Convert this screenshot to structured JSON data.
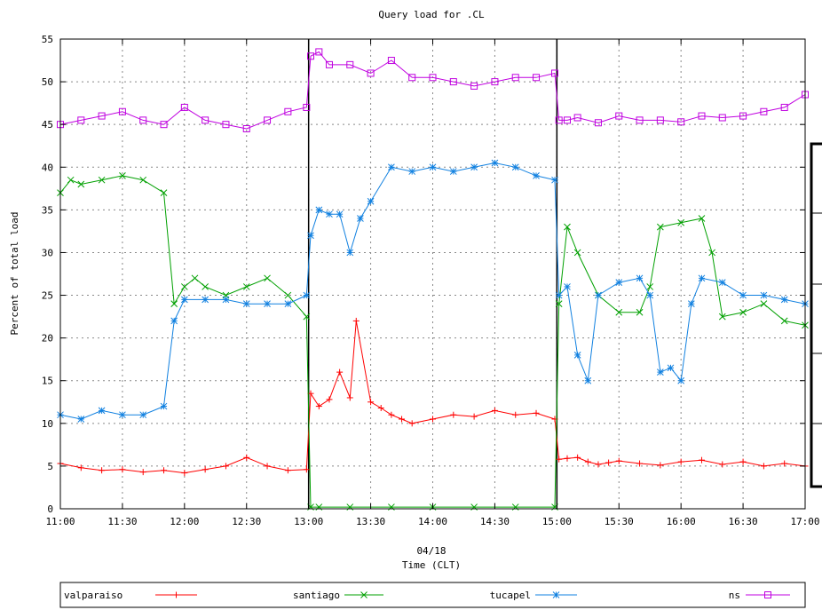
{
  "chart_data": {
    "type": "line",
    "title": "Query load for .CL",
    "xlabel_date": "04/18",
    "xlabel": "Time (CLT)",
    "ylabel": "Percent of total load",
    "ylim": [
      0,
      55
    ],
    "yticks": [
      "0",
      "5",
      "10",
      "15",
      "20",
      "25",
      "30",
      "35",
      "40",
      "45",
      "50",
      "55"
    ],
    "xticks": [
      "11:00",
      "11:30",
      "12:00",
      "12:30",
      "13:00",
      "13:30",
      "14:00",
      "14:30",
      "15:00",
      "15:30",
      "16:00",
      "16:30",
      "17:00"
    ],
    "xlim_minutes_since_11": [
      0,
      360
    ],
    "grid": true,
    "legend_position": "bottom",
    "series": [
      {
        "name": "valparaiso",
        "color": "#ff0000",
        "marker": "plus",
        "x": [
          0,
          10,
          20,
          30,
          40,
          50,
          60,
          70,
          80,
          90,
          100,
          110,
          119,
          121,
          125,
          130,
          135,
          140,
          143,
          150,
          155,
          160,
          165,
          170,
          180,
          190,
          200,
          210,
          220,
          230,
          239,
          241,
          245,
          250,
          255,
          260,
          265,
          270,
          280,
          290,
          300,
          310,
          320,
          330,
          340,
          350,
          360
        ],
        "y": [
          5.3,
          4.8,
          4.5,
          4.6,
          4.3,
          4.5,
          4.2,
          4.6,
          5.0,
          6.0,
          5.0,
          4.5,
          4.6,
          13.5,
          12.0,
          12.8,
          16.0,
          13.0,
          22.0,
          12.5,
          11.8,
          11.0,
          10.5,
          10.0,
          10.5,
          11.0,
          10.8,
          11.5,
          11.0,
          11.2,
          10.5,
          5.8,
          5.9,
          6.0,
          5.5,
          5.2,
          5.4,
          5.6,
          5.3,
          5.1,
          5.5,
          5.7,
          5.2,
          5.5,
          5.0,
          5.3,
          5.0
        ]
      },
      {
        "name": "santiago",
        "color": "#00a000",
        "marker": "x",
        "x": [
          0,
          5,
          10,
          20,
          30,
          40,
          50,
          55,
          60,
          65,
          70,
          80,
          90,
          100,
          110,
          119,
          121,
          125,
          140,
          160,
          180,
          200,
          220,
          239,
          241,
          245,
          250,
          260,
          270,
          280,
          285,
          290,
          300,
          310,
          315,
          320,
          330,
          340,
          350,
          360
        ],
        "y": [
          37,
          38.5,
          38,
          38.5,
          39,
          38.5,
          37,
          24,
          26,
          27,
          26,
          25,
          26,
          27,
          25,
          22.5,
          0.2,
          0.2,
          0.2,
          0.2,
          0.2,
          0.2,
          0.2,
          0.2,
          24,
          33,
          30,
          25,
          23,
          23,
          26,
          33,
          33.5,
          34,
          30,
          22.5,
          23,
          24,
          22,
          21.5
        ]
      },
      {
        "name": "tucapel",
        "color": "#1080e0",
        "marker": "star",
        "x": [
          0,
          10,
          20,
          30,
          40,
          50,
          55,
          60,
          70,
          80,
          90,
          100,
          110,
          119,
          121,
          125,
          130,
          135,
          140,
          145,
          150,
          160,
          170,
          180,
          190,
          200,
          210,
          220,
          230,
          239,
          241,
          245,
          250,
          255,
          260,
          270,
          280,
          285,
          290,
          295,
          300,
          305,
          310,
          320,
          330,
          340,
          350,
          360
        ],
        "y": [
          11,
          10.5,
          11.5,
          11,
          11,
          12,
          22,
          24.5,
          24.5,
          24.5,
          24,
          24,
          24,
          25,
          32,
          35,
          34.5,
          34.5,
          30,
          34,
          36,
          40,
          39.5,
          40,
          39.5,
          40,
          40.5,
          40,
          39,
          38.5,
          25,
          26,
          18,
          15,
          25,
          26.5,
          27,
          25,
          16,
          16.5,
          15,
          24,
          27,
          26.5,
          25,
          25,
          24.5,
          24
        ]
      },
      {
        "name": "ns",
        "color": "#c000e0",
        "marker": "square",
        "x": [
          0,
          10,
          20,
          30,
          40,
          50,
          60,
          70,
          80,
          90,
          100,
          110,
          119,
          121,
          125,
          130,
          140,
          150,
          160,
          170,
          180,
          190,
          200,
          210,
          220,
          230,
          239,
          241,
          245,
          250,
          260,
          270,
          280,
          290,
          300,
          310,
          320,
          330,
          340,
          350,
          360
        ],
        "y": [
          45,
          45.5,
          46,
          46.5,
          45.5,
          45,
          47,
          45.5,
          45,
          44.5,
          45.5,
          46.5,
          47,
          53,
          53.5,
          52,
          52,
          51,
          52.5,
          50.5,
          50.5,
          50,
          49.5,
          50,
          50.5,
          50.5,
          51,
          45.5,
          45.5,
          45.8,
          45.2,
          46,
          45.5,
          45.5,
          45.3,
          46,
          45.8,
          46,
          46.5,
          47,
          48.5
        ]
      }
    ],
    "divider_lines_at_minutes": [
      120,
      240
    ],
    "legend_entries": [
      "valparaiso",
      "santiago",
      "tucapel",
      "ns"
    ]
  }
}
